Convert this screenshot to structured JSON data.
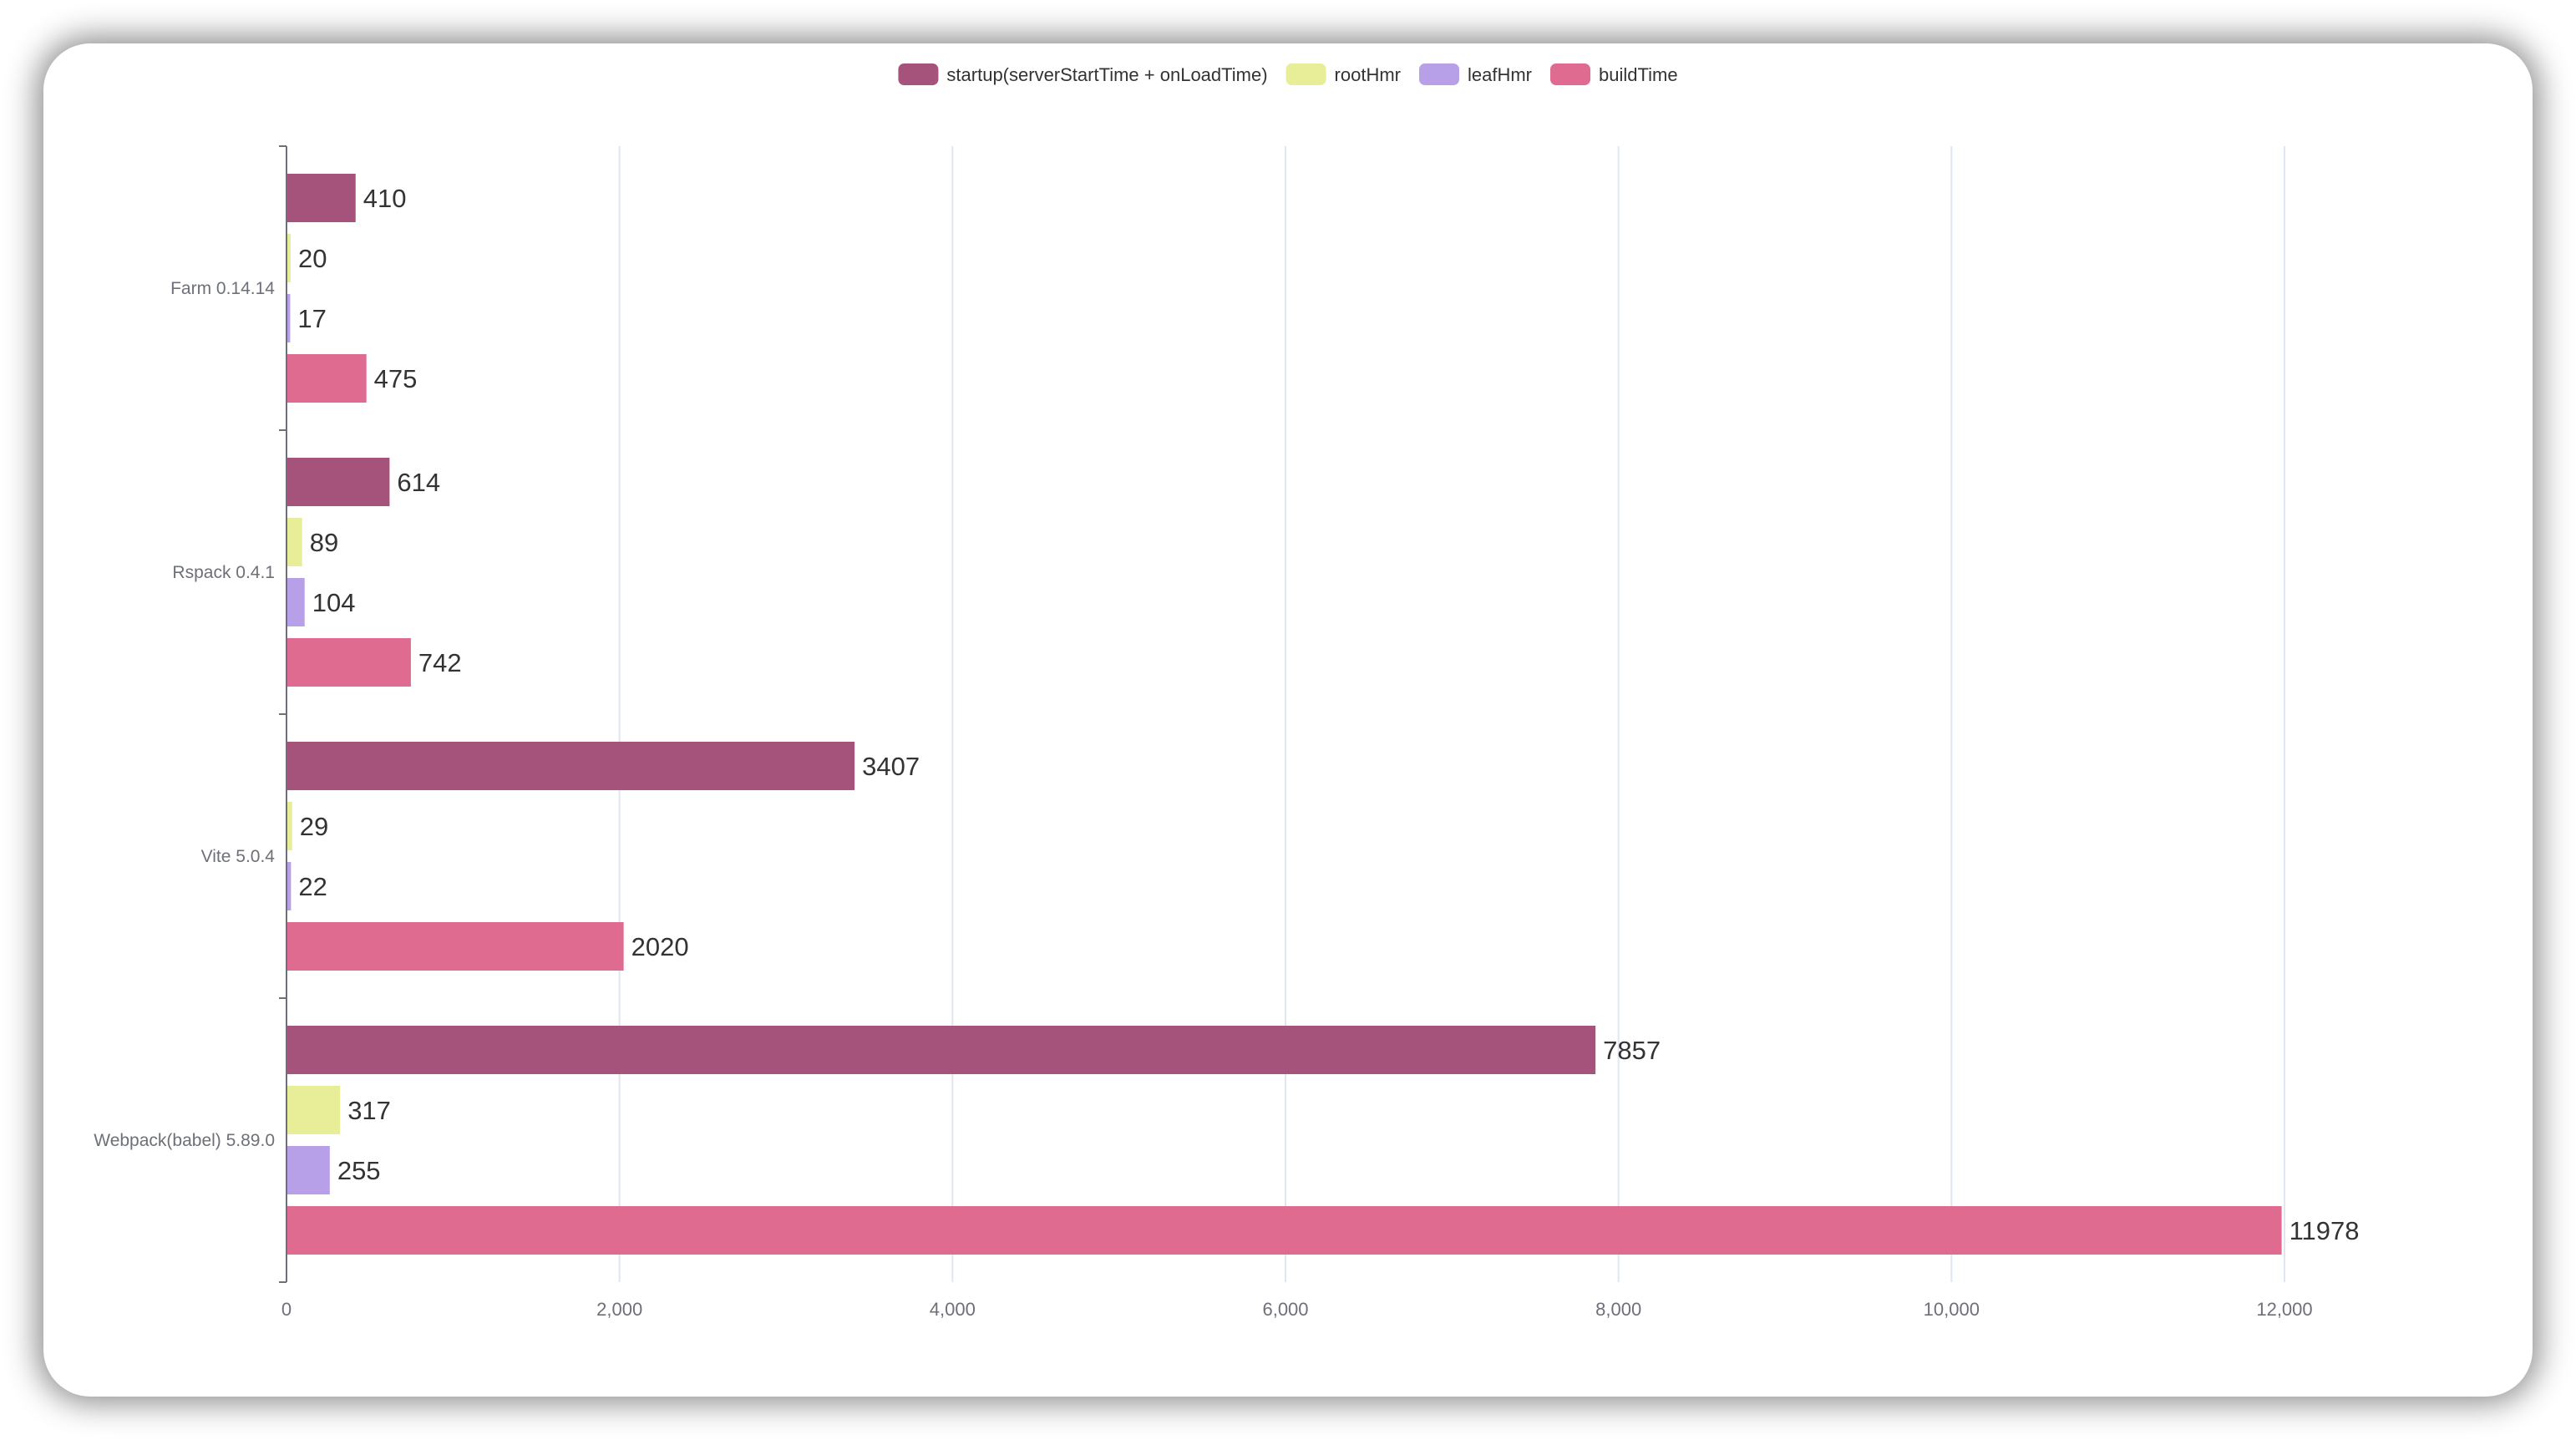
{
  "chart_data": {
    "type": "bar",
    "orientation": "horizontal",
    "title": "",
    "xlabel": "",
    "ylabel": "",
    "categories": [
      "Farm 0.14.14",
      "Rspack 0.4.1",
      "Vite 5.0.4",
      "Webpack(babel) 5.89.0"
    ],
    "series": [
      {
        "name": "startup(serverStartTime + onLoadTime)",
        "color": "#a5537a",
        "values": [
          410,
          614,
          3407,
          7857
        ]
      },
      {
        "name": "rootHmr",
        "color": "#e8ee98",
        "values": [
          20,
          89,
          29,
          317
        ]
      },
      {
        "name": "leafHmr",
        "color": "#b8a0e8",
        "values": [
          17,
          104,
          22,
          255
        ]
      },
      {
        "name": "buildTime",
        "color": "#df6b91",
        "values": [
          475,
          742,
          2020,
          11978
        ]
      }
    ],
    "xlim": [
      0,
      12000
    ],
    "xticks": [
      0,
      2000,
      4000,
      6000,
      8000,
      10000,
      12000
    ],
    "xtick_labels": [
      "0",
      "2,000",
      "4,000",
      "6,000",
      "8,000",
      "10,000",
      "12,000"
    ],
    "grid": true,
    "legend_position": "top-center"
  }
}
